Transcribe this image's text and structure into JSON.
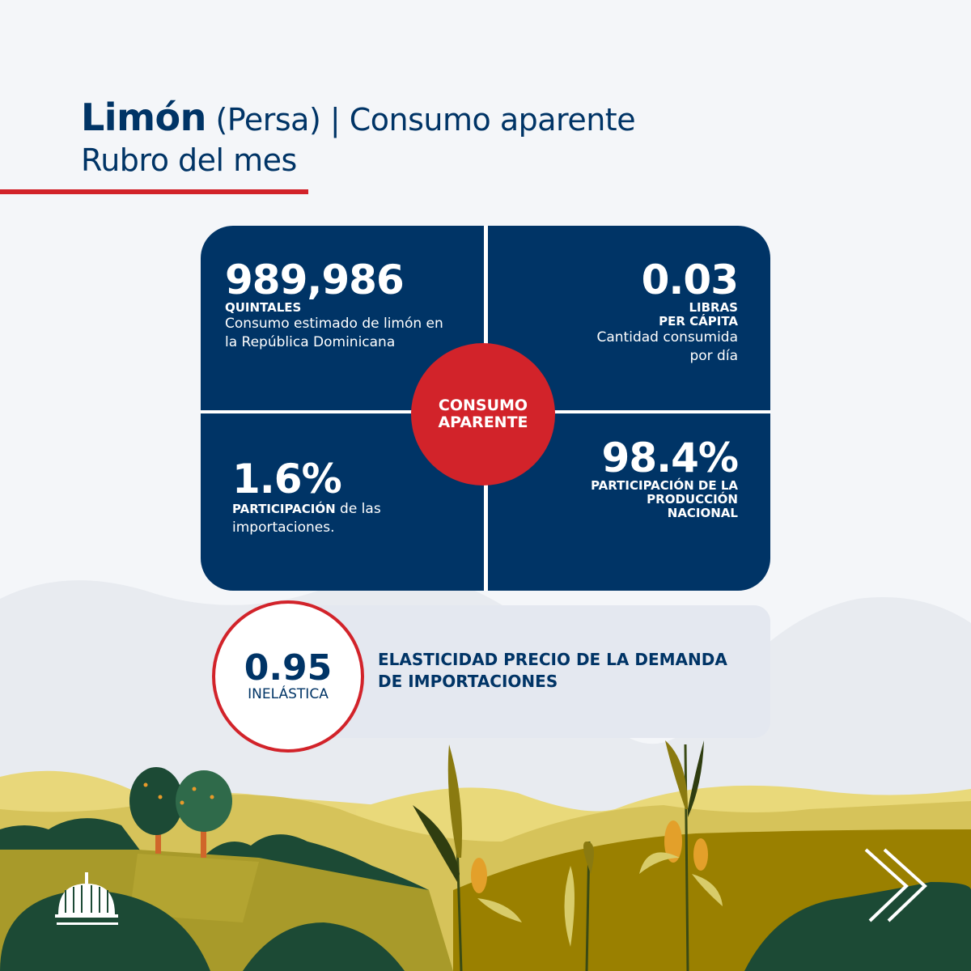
{
  "header": {
    "product": "Limón",
    "variety": "(Persa)",
    "separator": "|",
    "topic": "Consumo aparente",
    "subtitle": "Rubro del mes"
  },
  "center_badge": {
    "line1": "CONSUMO",
    "line2": "APARENTE"
  },
  "quadrants": {
    "top_left": {
      "value": "989,986",
      "unit": "QUINTALES",
      "desc1": "Consumo estimado de limón en",
      "desc2": "la República Dominicana"
    },
    "top_right": {
      "value": "0.03",
      "unit1": "LIBRAS",
      "unit2": "PER CÁPITA",
      "desc1": "Cantidad consumida",
      "desc2": "por día"
    },
    "bottom_left": {
      "value": "1.6%",
      "label_bold": "PARTICIPACIÓN",
      "label_rest": " de las",
      "label2": "importaciones."
    },
    "bottom_right": {
      "value": "98.4%",
      "line1": "PARTICIPACIÓN DE LA",
      "line2": "PRODUCCIÓN",
      "line3": "NACIONAL"
    }
  },
  "elasticity": {
    "value": "0.95",
    "classification": "INELÁSTICA",
    "title1": "ELASTICIDAD PRECIO DE LA DEMANDA",
    "title2": "DE IMPORTACIONES"
  },
  "icons": {
    "logo": "capitol-dome-icon",
    "next": "double-chevron-right-icon"
  },
  "colors": {
    "navy": "#003466",
    "red": "#d2232a",
    "background": "#f4f6f9"
  }
}
